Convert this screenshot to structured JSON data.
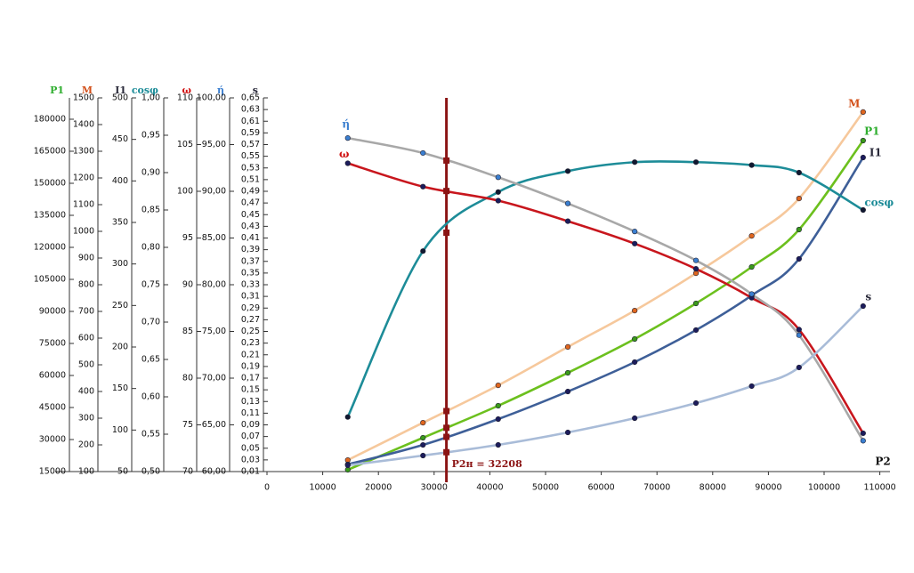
{
  "chart_data": {
    "type": "line",
    "x_label": "P2",
    "x": [
      14500,
      28000,
      41500,
      54000,
      66000,
      77000,
      87000,
      95500,
      107000
    ],
    "xlim": [
      0,
      110000
    ],
    "xticks": [
      0,
      10000,
      20000,
      30000,
      40000,
      50000,
      60000,
      70000,
      80000,
      90000,
      100000,
      110000
    ],
    "marker_line": {
      "x": 32208,
      "label": "P2н = 32208",
      "color": "#8b1414"
    },
    "series": [
      {
        "name": "P1",
        "color": "#6cc01e",
        "marker_color": "#3a9a1a",
        "label_color": "#2fae2f",
        "values": [
          15833,
          30833,
          45833,
          61250,
          77083,
          93750,
          110833,
          128333,
          170000
        ],
        "ylim": [
          15000,
          190000
        ],
        "yticks": [
          15000,
          30000,
          45000,
          60000,
          75000,
          90000,
          105000,
          120000,
          135000,
          150000,
          165000,
          180000
        ]
      },
      {
        "name": "M",
        "color": "#f6c89c",
        "marker_color": "#e0661e",
        "label_color": "#d2501a",
        "values": [
          143,
          283,
          423,
          567,
          703,
          843,
          983,
          1123,
          1447
        ],
        "ylim": [
          100,
          1500
        ],
        "yticks": [
          100,
          200,
          300,
          400,
          500,
          600,
          700,
          800,
          900,
          1000,
          1100,
          1200,
          1300,
          1400,
          1500
        ]
      },
      {
        "name": "I1",
        "color": "#3e5f98",
        "marker_color": "#1c1c5c",
        "label_color": "#2a2a3a",
        "values": [
          58.6,
          82.1,
          113.2,
          146.4,
          181.8,
          220.4,
          262.1,
          306.1,
          428.2
        ],
        "ylim": [
          50,
          500
        ],
        "yticks": [
          50,
          100,
          150,
          200,
          250,
          300,
          350,
          400,
          450,
          500
        ]
      },
      {
        "name": "cosφ",
        "color": "#1d8c98",
        "marker_color": "#101830",
        "label_color": "#1d8c98",
        "values": [
          0.573,
          0.795,
          0.874,
          0.902,
          0.914,
          0.914,
          0.91,
          0.9,
          0.85
        ],
        "ylim": [
          0.5,
          1.0
        ],
        "yticks": [
          {
            "value": 0.5,
            "label": "0,50"
          },
          {
            "value": 0.55,
            "label": "0,55"
          },
          {
            "value": 0.6,
            "label": "0,60"
          },
          {
            "value": 0.65,
            "label": "0,65"
          },
          {
            "value": 0.7,
            "label": "0,70"
          },
          {
            "value": 0.75,
            "label": "0,75"
          },
          {
            "value": 0.8,
            "label": "0,80"
          },
          {
            "value": 0.85,
            "label": "0,85"
          },
          {
            "value": 0.9,
            "label": "0,90"
          },
          {
            "value": 0.95,
            "label": "0,95"
          },
          {
            "value": 1.0,
            "label": "1,00"
          }
        ]
      },
      {
        "name": "ω",
        "color": "#c8161d",
        "marker_color": "#1c1c5c",
        "label_color": "#d01010",
        "values": [
          103.0,
          100.5,
          99.0,
          96.8,
          94.4,
          91.7,
          88.6,
          85.2,
          74.1
        ],
        "ylim": [
          70,
          110
        ],
        "yticks": [
          70,
          75,
          80,
          85,
          90,
          95,
          100,
          105,
          110
        ]
      },
      {
        "name": "ή",
        "color": "#a8a8a8",
        "marker_color": "#3b7fd0",
        "label_color": "#3b7fd0",
        "values": [
          95.7,
          94.1,
          91.5,
          88.7,
          85.7,
          82.6,
          79.0,
          74.6,
          63.3
        ],
        "ylim": [
          60,
          100
        ],
        "yticks": [
          {
            "value": 60,
            "label": "60,00"
          },
          {
            "value": 65,
            "label": "65,00"
          },
          {
            "value": 70,
            "label": "70,00"
          },
          {
            "value": 75,
            "label": "75,00"
          },
          {
            "value": 80,
            "label": "80,00"
          },
          {
            "value": 85,
            "label": "85,00"
          },
          {
            "value": 90,
            "label": "90,00"
          },
          {
            "value": 95,
            "label": "95,00"
          },
          {
            "value": 100,
            "label": "100,00"
          }
        ]
      },
      {
        "name": "s",
        "color": "#a9bcd8",
        "marker_color": "#1c1c5c",
        "label_color": "#2a2a3a",
        "values": [
          0.0207,
          0.0374,
          0.0557,
          0.077,
          0.1014,
          0.1273,
          0.1563,
          0.1883,
          0.2934
        ],
        "ylim": [
          0.01,
          0.65
        ],
        "yticks": [
          {
            "value": 0.01,
            "label": "0,01"
          },
          {
            "value": 0.03,
            "label": "0,03"
          },
          {
            "value": 0.05,
            "label": "0,05"
          },
          {
            "value": 0.07,
            "label": "0,07"
          },
          {
            "value": 0.09,
            "label": "0,09"
          },
          {
            "value": 0.11,
            "label": "0,11"
          },
          {
            "value": 0.13,
            "label": "0,13"
          },
          {
            "value": 0.15,
            "label": "0,15"
          },
          {
            "value": 0.17,
            "label": "0,17"
          },
          {
            "value": 0.19,
            "label": "0,19"
          },
          {
            "value": 0.21,
            "label": "0,21"
          },
          {
            "value": 0.23,
            "label": "0,23"
          },
          {
            "value": 0.25,
            "label": "0,25"
          },
          {
            "value": 0.27,
            "label": "0,27"
          },
          {
            "value": 0.29,
            "label": "0,29"
          },
          {
            "value": 0.31,
            "label": "0,31"
          },
          {
            "value": 0.33,
            "label": "0,33"
          },
          {
            "value": 0.35,
            "label": "0,35"
          },
          {
            "value": 0.37,
            "label": "0,37"
          },
          {
            "value": 0.39,
            "label": "0,39"
          },
          {
            "value": 0.41,
            "label": "0,41"
          },
          {
            "value": 0.43,
            "label": "0,43"
          },
          {
            "value": 0.45,
            "label": "0,45"
          },
          {
            "value": 0.47,
            "label": "0,47"
          },
          {
            "value": 0.49,
            "label": "0,49"
          },
          {
            "value": 0.51,
            "label": "0,51"
          },
          {
            "value": 0.53,
            "label": "0,53"
          },
          {
            "value": 0.55,
            "label": "0,55"
          },
          {
            "value": 0.57,
            "label": "0,57"
          },
          {
            "value": 0.59,
            "label": "0,59"
          },
          {
            "value": 0.61,
            "label": "0,61"
          },
          {
            "value": 0.63,
            "label": "0,63"
          },
          {
            "value": 0.65,
            "label": "0,65"
          }
        ]
      }
    ]
  }
}
